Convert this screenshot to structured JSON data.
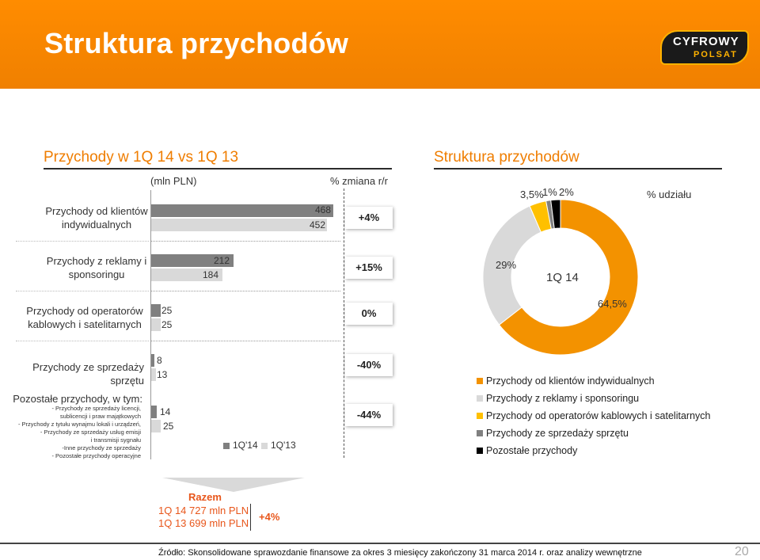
{
  "title": "Struktura przychodów",
  "logo": {
    "line1": "CYFROWY",
    "line2": "POLSAT"
  },
  "left": {
    "section_title": "Przychody w 1Q 14 vs 1Q 13",
    "unit_header": "(mln PLN)",
    "change_header": "% zmiana r/r"
  },
  "right": {
    "section_title": "Struktura przychodów",
    "share_header": "% udziału"
  },
  "chart_data": [
    {
      "type": "bar",
      "orientation": "horizontal",
      "title": "Przychody w 1Q 14 vs 1Q 13",
      "ylabel": "(mln PLN)",
      "categories": [
        "Przychody od klientów indywidualnych",
        "Przychody z reklamy i sponsoringu",
        "Przychody od operatorów kablowych i satelitarnych",
        "Przychody ze sprzedaży sprzętu",
        "Pozostałe przychody, w tym:"
      ],
      "series": [
        {
          "name": "1Q'14",
          "values": [
            468,
            212,
            25,
            8,
            14
          ]
        },
        {
          "name": "1Q'13",
          "values": [
            452,
            184,
            25,
            13,
            25
          ]
        }
      ],
      "changes": [
        "+4%",
        "+15%",
        "0%",
        "-40%",
        "-44%"
      ],
      "xlim": [
        0,
        480
      ]
    },
    {
      "type": "pie",
      "title": "Struktura przychodów",
      "center_label": "1Q 14",
      "categories": [
        "Przychody od klientów indywidualnych",
        "Przychody z reklamy i sponsoringu",
        "Przychody od operatorów kablowych i satelitarnych",
        "Przychody ze sprzedaży sprzętu",
        "Pozostałe przychody"
      ],
      "values": [
        64.5,
        29,
        3.5,
        1,
        2
      ],
      "labels": [
        "64,5%",
        "29%",
        "3,5%",
        "1%",
        "2%"
      ],
      "colors": [
        "#f39200",
        "#d9d9d9",
        "#ffc000",
        "#808080",
        "#000000"
      ]
    }
  ],
  "bar_labels": {
    "cat1": "Przychody od klientów indywidualnych",
    "cat2": "Przychody z reklamy i sponsoringu",
    "cat3": "Przychody od operatorów kablowych i satelitarnych",
    "cat4": "Przychody ze sprzedaży sprzętu",
    "cat5": "Pozostałe przychody, w tym:",
    "cat5_sub": [
      "- Przychody ze sprzedaży licencji,",
      "sublicencji i praw majątkowych",
      "- Przychody z tytułu wynajmu lokali i urządzeń,",
      "- Przychody ze sprzedaży usług emisji",
      "i transmisji sygnału",
      "-Inne przychody ze sprzedaży",
      "- Pozostałe przychody operacyjne"
    ]
  },
  "legend_bars": {
    "cur": "1Q'14",
    "prev": "1Q'13"
  },
  "legend_pie": [
    "Przychody od klientów indywidualnych",
    "Przychody z reklamy i sponsoringu",
    "Przychody od operatorów kablowych i satelitarnych",
    "Przychody ze sprzedaży sprzętu",
    "Pozostałe przychody"
  ],
  "total": {
    "label": "Razem",
    "line1": "1Q 14  727 mln PLN",
    "line2": "1Q 13  699 mln PLN",
    "change": "+4%"
  },
  "source": "Źródło: Skonsolidowane sprawozdanie finansowe za okres 3 miesięcy zakończony 31 marca 2014 r. oraz analizy wewnętrzne",
  "page_number": "20"
}
